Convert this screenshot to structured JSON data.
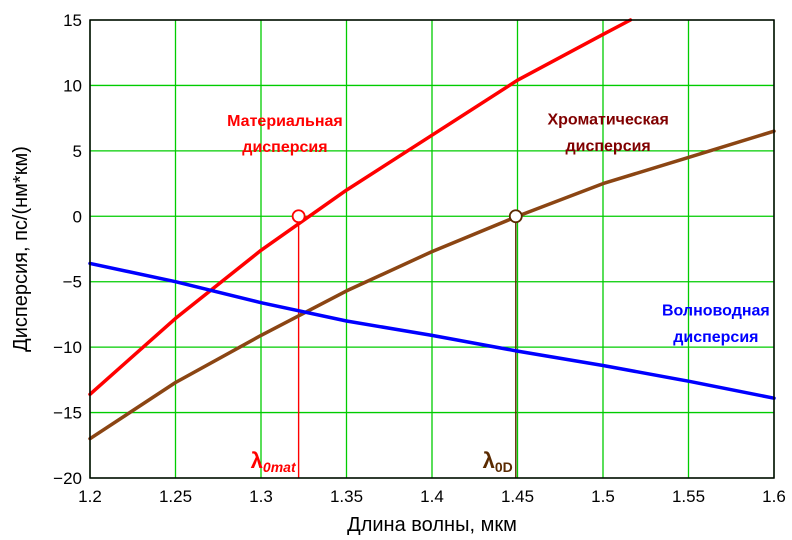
{
  "chart_data": {
    "type": "line",
    "xlabel": "Длина волны, мкм",
    "ylabel": "Дисперсия, пс/(нм*км)",
    "xlim": [
      1.2,
      1.6
    ],
    "ylim": [
      -20,
      15
    ],
    "xticks": [
      1.2,
      1.25,
      1.3,
      1.35,
      1.4,
      1.45,
      1.5,
      1.55,
      1.6
    ],
    "xtick_labels": [
      "1.2",
      "1.25",
      "1.3",
      "1.35",
      "1.4",
      "1.45",
      "1.5",
      "1.55",
      "1.6"
    ],
    "yticks": [
      -20,
      -15,
      -10,
      -5,
      0,
      5,
      10,
      15
    ],
    "ytick_labels": [
      "−20",
      "−15",
      "−10",
      "−5",
      "0",
      "5",
      "10",
      "15"
    ],
    "grid": true,
    "series": [
      {
        "key": "material",
        "color": "#ff0000",
        "x": [
          1.2,
          1.25,
          1.3,
          1.35,
          1.4,
          1.45,
          1.5,
          1.516
        ],
        "y": [
          -13.6,
          -7.8,
          -2.6,
          2.0,
          6.2,
          10.4,
          13.9,
          15.0
        ]
      },
      {
        "key": "chromatic",
        "color": "#8b4513",
        "x": [
          1.2,
          1.25,
          1.3,
          1.35,
          1.4,
          1.45,
          1.5,
          1.55,
          1.6
        ],
        "y": [
          -17.0,
          -12.7,
          -9.1,
          -5.7,
          -2.7,
          0.0,
          2.5,
          4.5,
          6.5
        ]
      },
      {
        "key": "waveguide",
        "color": "#0000ff",
        "x": [
          1.2,
          1.25,
          1.3,
          1.35,
          1.4,
          1.45,
          1.5,
          1.55,
          1.6
        ],
        "y": [
          -3.6,
          -5.0,
          -6.6,
          -8.0,
          -9.1,
          -10.3,
          -11.4,
          -12.6,
          -13.9
        ]
      }
    ],
    "markers": [
      {
        "x": 1.322,
        "y": 0,
        "color": "#ff0000"
      },
      {
        "x": 1.449,
        "y": 0,
        "color": "#5a2a00"
      }
    ],
    "annotations": [
      {
        "lines": [
          "Материальная",
          "дисперсия"
        ],
        "color": "#ff0000",
        "x": 1.314,
        "y": [
          6.9,
          4.9
        ]
      },
      {
        "lines": [
          "Хроматическая",
          "дисперсия"
        ],
        "color": "#800000",
        "x": 1.503,
        "y": [
          7.0,
          5.0
        ]
      },
      {
        "lines": [
          "Волноводная",
          "дисперсия"
        ],
        "color": "#0000ff",
        "x": 1.566,
        "y": [
          -7.6,
          -9.6
        ]
      }
    ],
    "lambda_labels": [
      {
        "base": "λ",
        "sub": "0mat",
        "color": "#ff0000",
        "x": 1.322
      },
      {
        "base": "λ",
        "sub": "0D",
        "color": "#5a2a00",
        "x": 1.449
      }
    ]
  }
}
